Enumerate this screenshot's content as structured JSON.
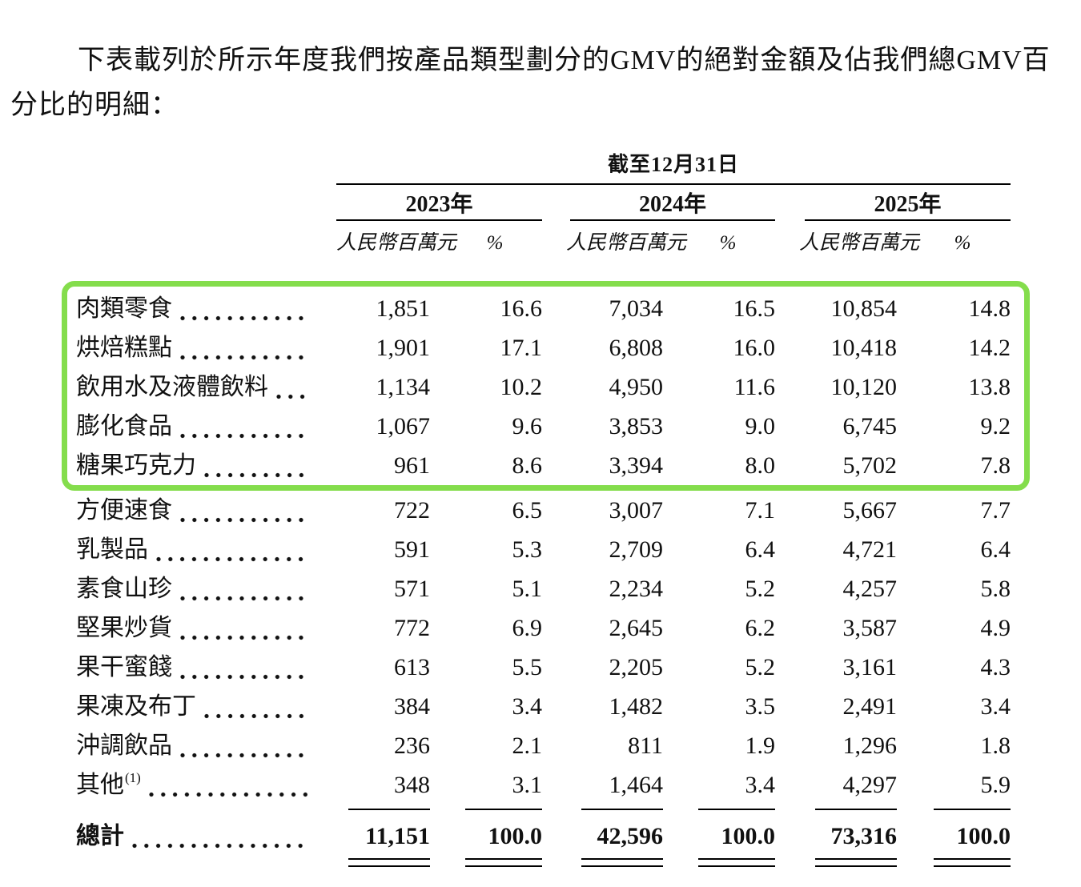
{
  "intro": {
    "lines": [
      "下表載列於所示年度我們按產品類型劃分的GMV的絕對金額及佔我們總GMV百",
      "分比的明細："
    ]
  },
  "table": {
    "period_header": "截至12月31日",
    "highlight_color": "#84dd4c",
    "year_groups": [
      {
        "year": "2023年",
        "unit": "人民幣百萬元",
        "pct": "%"
      },
      {
        "year": "2024年",
        "unit": "人民幣百萬元",
        "pct": "%"
      },
      {
        "year": "2025年",
        "unit": "人民幣百萬元",
        "pct": "%"
      }
    ],
    "rows": [
      {
        "label": "肉類零食",
        "sup": "",
        "highlighted": true,
        "values": [
          "1,851",
          "16.6",
          "7,034",
          "16.5",
          "10,854",
          "14.8"
        ]
      },
      {
        "label": "烘焙糕點",
        "sup": "",
        "highlighted": true,
        "values": [
          "1,901",
          "17.1",
          "6,808",
          "16.0",
          "10,418",
          "14.2"
        ]
      },
      {
        "label": "飲用水及液體飲料",
        "sup": "",
        "highlighted": true,
        "values": [
          "1,134",
          "10.2",
          "4,950",
          "11.6",
          "10,120",
          "13.8"
        ]
      },
      {
        "label": "膨化食品",
        "sup": "",
        "highlighted": true,
        "values": [
          "1,067",
          "9.6",
          "3,853",
          "9.0",
          "6,745",
          "9.2"
        ]
      },
      {
        "label": "糖果巧克力",
        "sup": "",
        "highlighted": true,
        "values": [
          "961",
          "8.6",
          "3,394",
          "8.0",
          "5,702",
          "7.8"
        ]
      },
      {
        "label": "方便速食",
        "sup": "",
        "highlighted": false,
        "values": [
          "722",
          "6.5",
          "3,007",
          "7.1",
          "5,667",
          "7.7"
        ]
      },
      {
        "label": "乳製品",
        "sup": "",
        "highlighted": false,
        "values": [
          "591",
          "5.3",
          "2,709",
          "6.4",
          "4,721",
          "6.4"
        ]
      },
      {
        "label": "素食山珍",
        "sup": "",
        "highlighted": false,
        "values": [
          "571",
          "5.1",
          "2,234",
          "5.2",
          "4,257",
          "5.8"
        ]
      },
      {
        "label": "堅果炒貨",
        "sup": "",
        "highlighted": false,
        "values": [
          "772",
          "6.9",
          "2,645",
          "6.2",
          "3,587",
          "4.9"
        ]
      },
      {
        "label": "果干蜜餞",
        "sup": "",
        "highlighted": false,
        "values": [
          "613",
          "5.5",
          "2,205",
          "5.2",
          "3,161",
          "4.3"
        ]
      },
      {
        "label": "果凍及布丁",
        "sup": "",
        "highlighted": false,
        "values": [
          "384",
          "3.4",
          "1,482",
          "3.5",
          "2,491",
          "3.4"
        ]
      },
      {
        "label": "沖調飲品",
        "sup": "",
        "highlighted": false,
        "values": [
          "236",
          "2.1",
          "811",
          "1.9",
          "1,296",
          "1.8"
        ]
      },
      {
        "label": "其他",
        "sup": "(1)",
        "highlighted": false,
        "values": [
          "348",
          "3.1",
          "1,464",
          "3.4",
          "4,297",
          "5.9"
        ]
      }
    ],
    "total_row": {
      "label": "總計",
      "values": [
        "11,151",
        "100.0",
        "42,596",
        "100.0",
        "73,316",
        "100.0"
      ]
    }
  }
}
